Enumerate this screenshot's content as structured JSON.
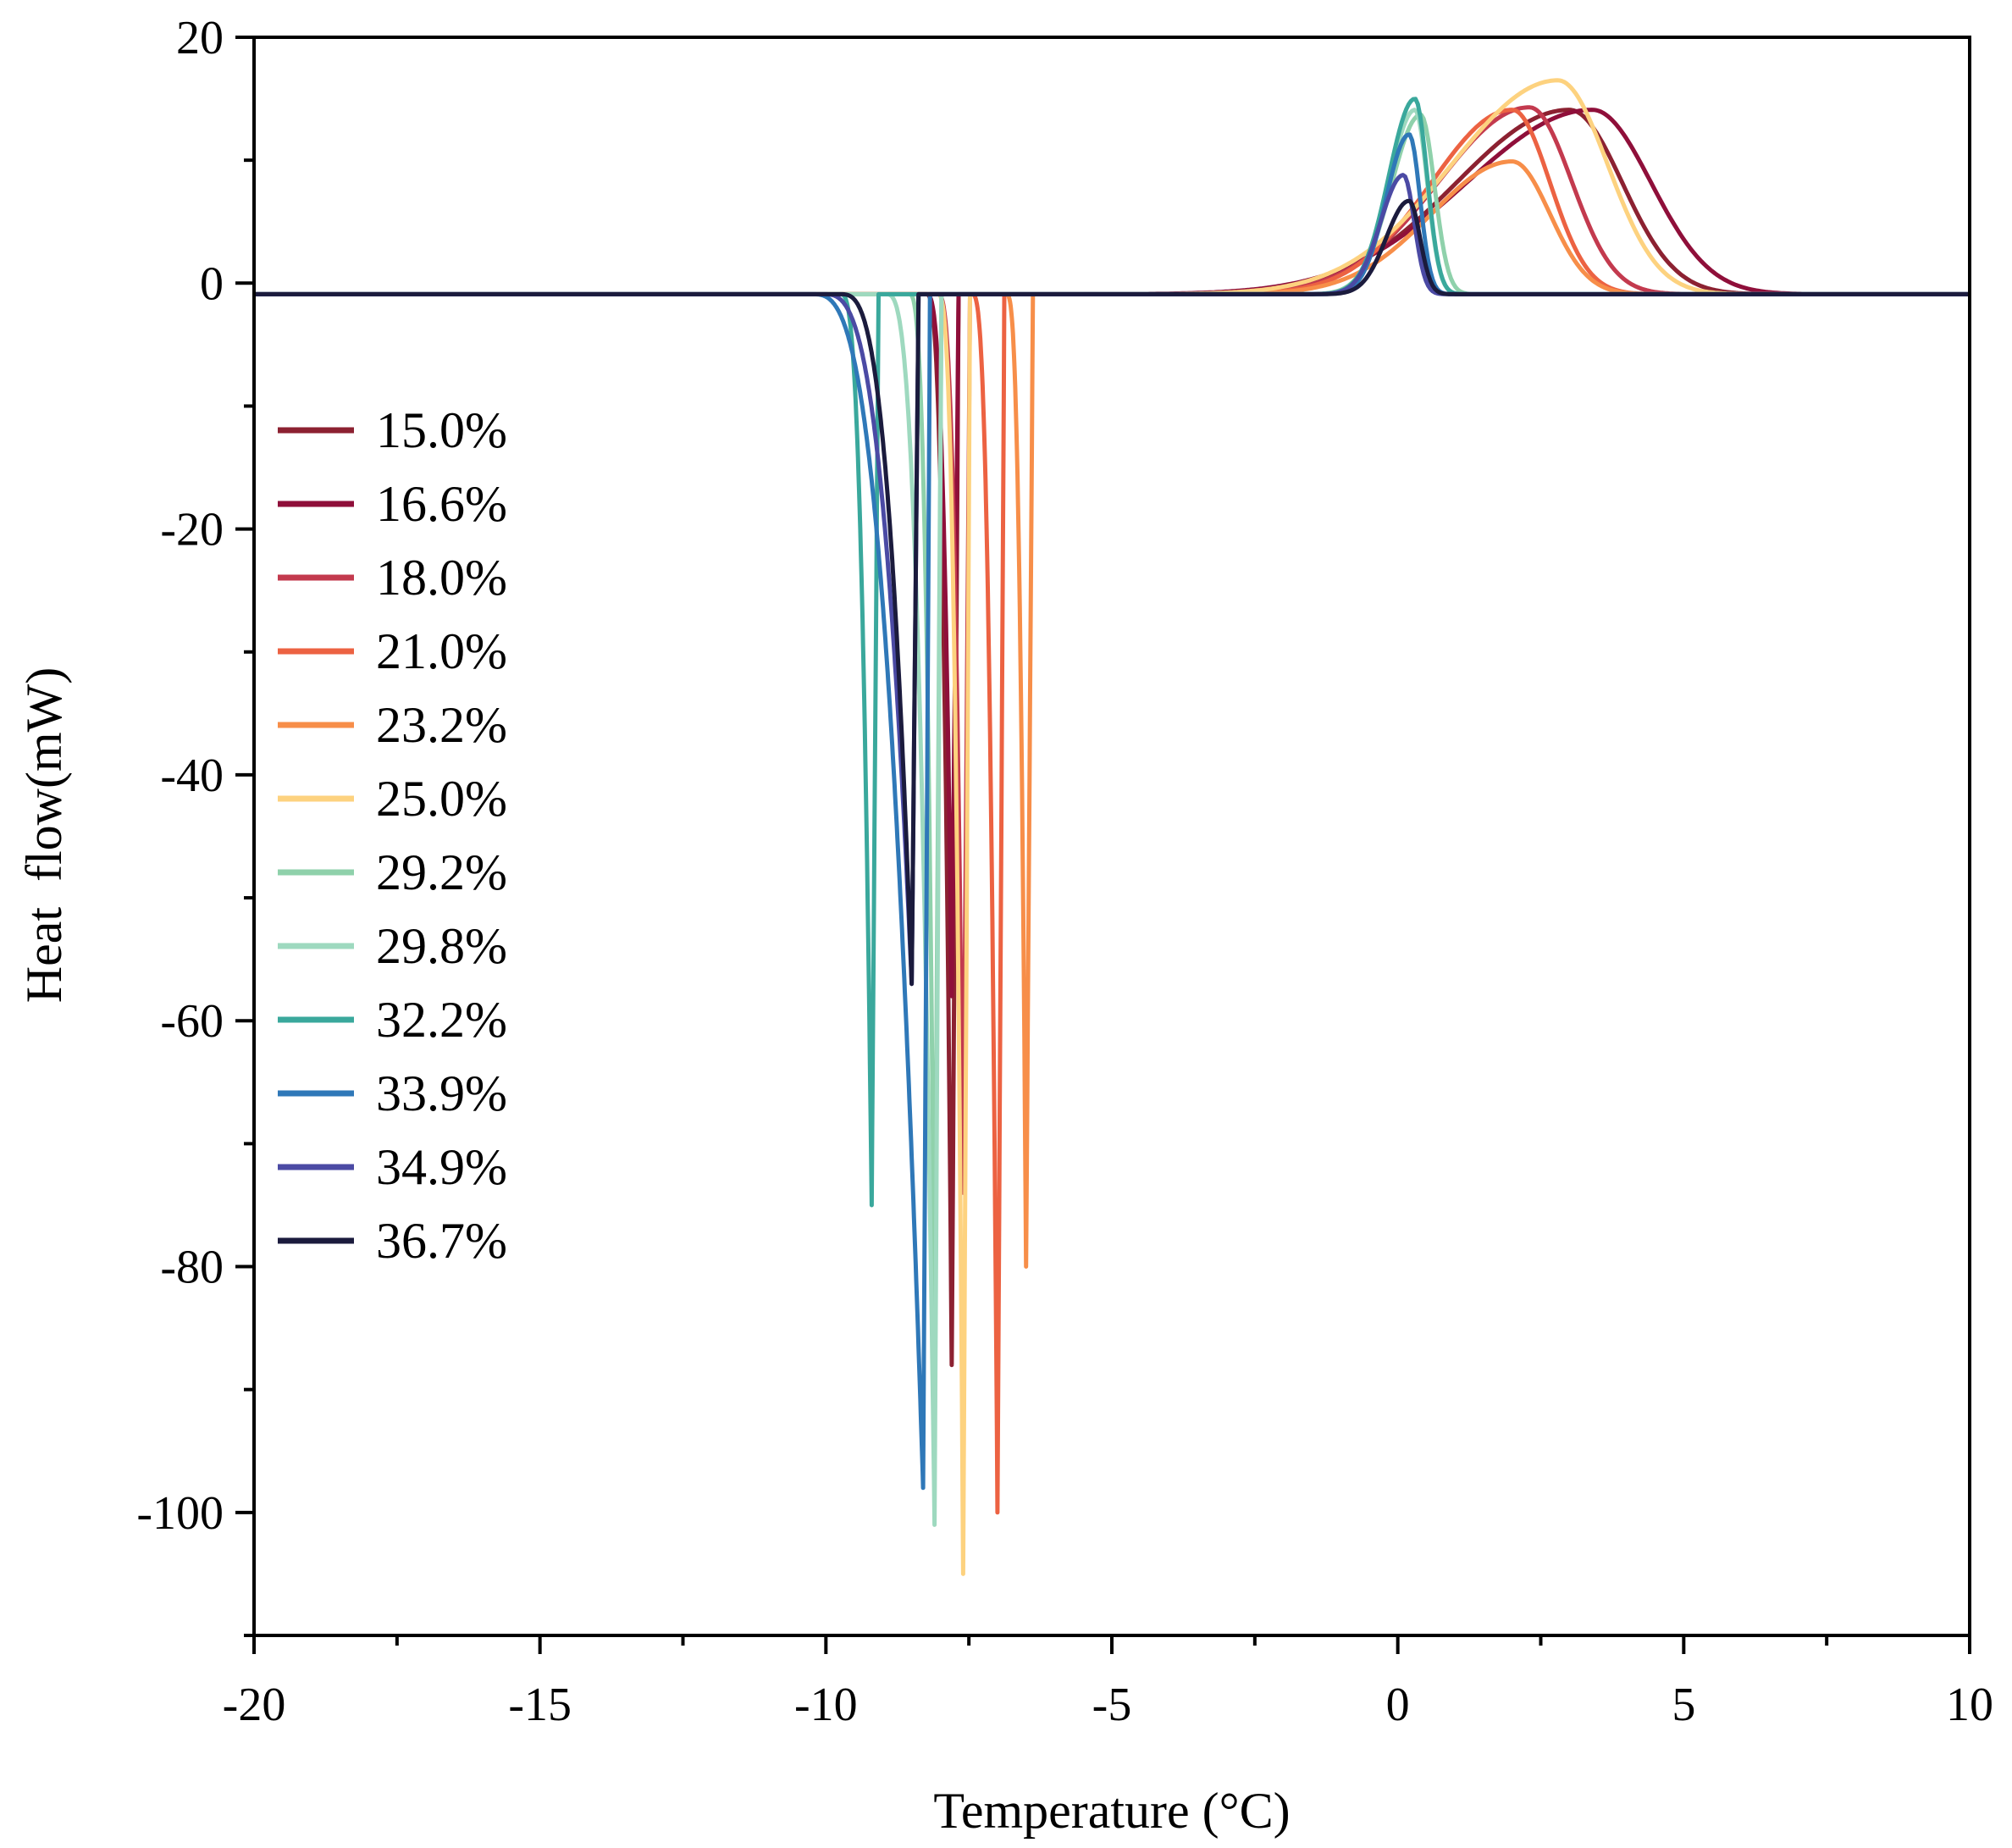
{
  "chart_data": {
    "type": "line",
    "title": "",
    "xlabel": "Temperature (°C)",
    "ylabel": "Heat  flow(mW)",
    "xlim": [
      -20,
      10
    ],
    "ylim": [
      -110,
      20
    ],
    "x_ticks": [
      -20,
      -15,
      -10,
      -5,
      0,
      5,
      10
    ],
    "x_tick_labels": [
      "-20",
      "-15",
      "-10",
      "-5",
      "0",
      "5",
      "10"
    ],
    "y_ticks": [
      20,
      0,
      -20,
      -40,
      -60,
      -80,
      -100
    ],
    "y_tick_labels": [
      "20",
      "0",
      "-20",
      "-40",
      "-60",
      "-80",
      "-100"
    ],
    "grid": false,
    "legend_position": "left",
    "series": [
      {
        "name": "15.0%",
        "color": "#8c2131",
        "freeze_onset": -8.0,
        "freeze_peak_x": -7.8,
        "freeze_peak_y": -88,
        "melt_peak_x": 3.0,
        "melt_peak_y": 15.0
      },
      {
        "name": "16.6%",
        "color": "#8f0f3a",
        "freeze_onset": -8.0,
        "freeze_peak_x": -7.8,
        "freeze_peak_y": -58,
        "melt_peak_x": 3.4,
        "melt_peak_y": 15.0
      },
      {
        "name": "18.0%",
        "color": "#c33a4e",
        "freeze_onset": -7.6,
        "freeze_peak_x": -7.8,
        "freeze_peak_y": -74,
        "melt_peak_x": 2.3,
        "melt_peak_y": 15.2
      },
      {
        "name": "21.0%",
        "color": "#ec6242",
        "freeze_onset": -7.0,
        "freeze_peak_x": -7.2,
        "freeze_peak_y": -100,
        "melt_peak_x": 2.0,
        "melt_peak_y": 15.0
      },
      {
        "name": "23.2%",
        "color": "#f78e49",
        "freeze_onset": -6.5,
        "freeze_peak_x": -6.6,
        "freeze_peak_y": -80,
        "melt_peak_x": 2.0,
        "melt_peak_y": 10.8
      },
      {
        "name": "25.0%",
        "color": "#fdd27f",
        "freeze_onset": -7.6,
        "freeze_peak_x": -7.8,
        "freeze_peak_y": -105,
        "melt_peak_x": 2.8,
        "melt_peak_y": 17.4
      },
      {
        "name": "29.2%",
        "color": "#8fd1ab",
        "freeze_onset": -8.3,
        "freeze_peak_x": -8.1,
        "freeze_peak_y": -85,
        "melt_peak_x": 0.4,
        "melt_peak_y": 14.6
      },
      {
        "name": "29.8%",
        "color": "#9ed9bf",
        "freeze_onset": -8.7,
        "freeze_peak_x": -8.1,
        "freeze_peak_y": -101,
        "melt_peak_x": 0.3,
        "melt_peak_y": 15.0
      },
      {
        "name": "32.2%",
        "color": "#3aa89c",
        "freeze_onset": -9.5,
        "freeze_peak_x": -9.2,
        "freeze_peak_y": -75,
        "melt_peak_x": 0.3,
        "melt_peak_y": 15.9
      },
      {
        "name": "33.9%",
        "color": "#2f78b8",
        "freeze_onset": -10.0,
        "freeze_peak_x": -8.3,
        "freeze_peak_y": -98,
        "melt_peak_x": 0.2,
        "melt_peak_y": 13.0
      },
      {
        "name": "34.9%",
        "color": "#4b4aa4",
        "freeze_onset": -9.8,
        "freeze_peak_x": -8.5,
        "freeze_peak_y": -57,
        "melt_peak_x": 0.1,
        "melt_peak_y": 9.7
      },
      {
        "name": "36.7%",
        "color": "#1b1b3d",
        "freeze_onset": -9.5,
        "freeze_peak_x": -8.5,
        "freeze_peak_y": -57,
        "melt_peak_x": 0.2,
        "melt_peak_y": 7.6
      }
    ]
  }
}
